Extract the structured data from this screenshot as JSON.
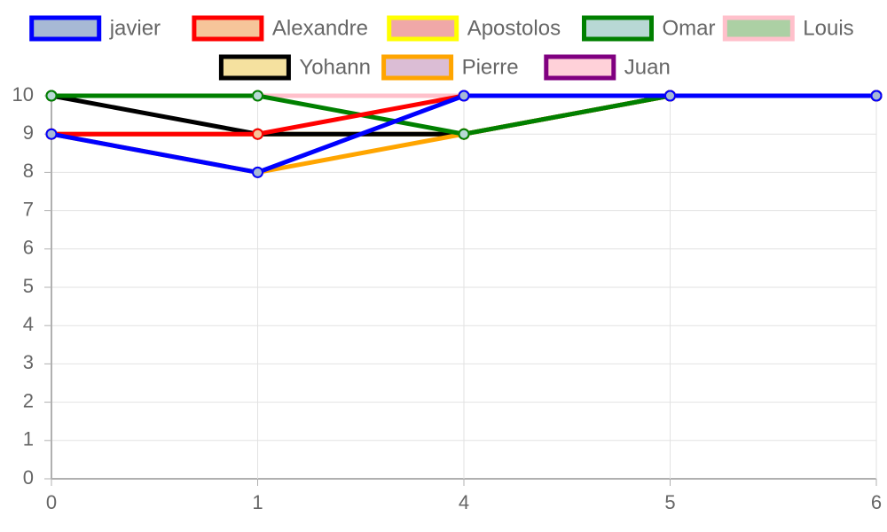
{
  "chart_data": {
    "type": "line",
    "categories": [
      "0",
      "1",
      "4",
      "5",
      "6"
    ],
    "ylim": [
      0,
      10
    ],
    "yticks": [
      0,
      1,
      2,
      3,
      4,
      5,
      6,
      7,
      8,
      9,
      10
    ],
    "grid": true,
    "legend_position": "top",
    "series": [
      {
        "name": "Louis",
        "values": [
          10,
          10,
          10,
          10,
          10
        ],
        "color": "#ffc0cb",
        "fill": "#acd0a4"
      },
      {
        "name": "Juan",
        "values": [
          9,
          9,
          9,
          10,
          10
        ],
        "color": "#800080",
        "fill": "#ffd1d9"
      },
      {
        "name": "Apostolos",
        "values": [
          9,
          9,
          9,
          10,
          10
        ],
        "color": "#ffff00",
        "fill": "#f0a8a8"
      },
      {
        "name": "Yohann",
        "values": [
          10,
          9,
          9,
          10,
          10
        ],
        "color": "#000000",
        "fill": "#f5e19f"
      },
      {
        "name": "Pierre",
        "values": [
          9,
          8,
          9,
          10,
          10
        ],
        "color": "#ffa500",
        "fill": "#dbbdd5"
      },
      {
        "name": "Omar",
        "values": [
          10,
          10,
          9,
          10,
          10
        ],
        "color": "#008000",
        "fill": "#b8d8d5"
      },
      {
        "name": "Alexandre",
        "values": [
          9,
          9,
          10,
          10,
          10
        ],
        "color": "#ff0000",
        "fill": "#f6c59a"
      },
      {
        "name": "javier",
        "values": [
          9,
          8,
          10,
          10,
          10
        ],
        "color": "#0000ff",
        "fill": "#a7b9d5"
      }
    ],
    "legend_order": [
      "javier",
      "Alexandre",
      "Apostolos",
      "Omar",
      "Louis",
      "Yohann",
      "Pierre",
      "Juan"
    ]
  }
}
